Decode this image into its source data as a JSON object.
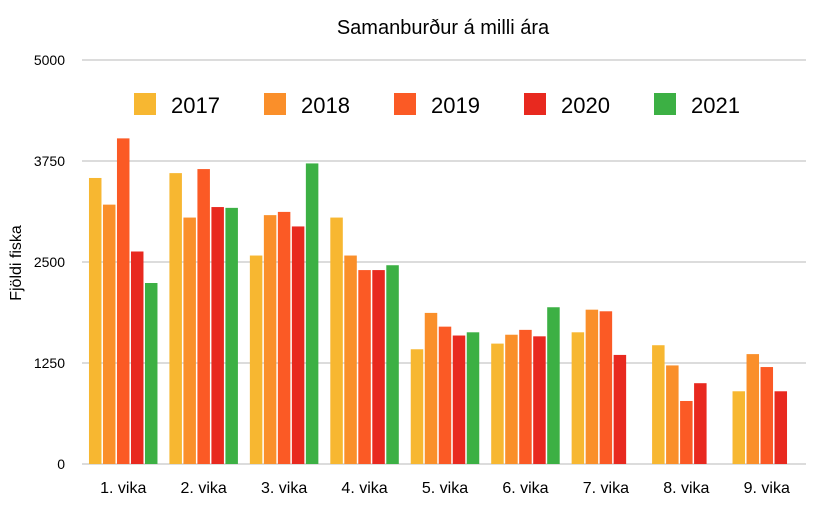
{
  "chart_data": {
    "type": "bar",
    "title": "Samanburður á milli ára",
    "ylabel": "Fjöldi fiska",
    "xlabel": "",
    "ylim": [
      0,
      5000
    ],
    "yticks": [
      "0",
      "1250",
      "2500",
      "3750",
      "5000"
    ],
    "legend_position": "top",
    "grid": true,
    "categories": [
      "1. vika",
      "2. vika",
      "3. vika",
      "4. vika",
      "5. vika",
      "6. vika",
      "7. vika",
      "8. vika",
      "9. vika"
    ],
    "series": [
      {
        "name": "2017",
        "color": "#f7b731",
        "values": [
          3540,
          3600,
          2580,
          3050,
          1420,
          1490,
          1630,
          1470,
          900
        ]
      },
      {
        "name": "2018",
        "color": "#fa8f2a",
        "values": [
          3210,
          3050,
          3080,
          2580,
          1870,
          1600,
          1910,
          1220,
          1360
        ]
      },
      {
        "name": "2019",
        "color": "#fb5a25",
        "values": [
          4030,
          3650,
          3120,
          2400,
          1700,
          1660,
          1890,
          780,
          1200
        ]
      },
      {
        "name": "2020",
        "color": "#e8291f",
        "values": [
          2630,
          3180,
          2940,
          2400,
          1590,
          1580,
          1350,
          1000,
          900
        ]
      },
      {
        "name": "2021",
        "color": "#3cb044",
        "values": [
          2240,
          3170,
          3720,
          2460,
          1630,
          1940,
          null,
          null,
          null
        ]
      }
    ]
  }
}
